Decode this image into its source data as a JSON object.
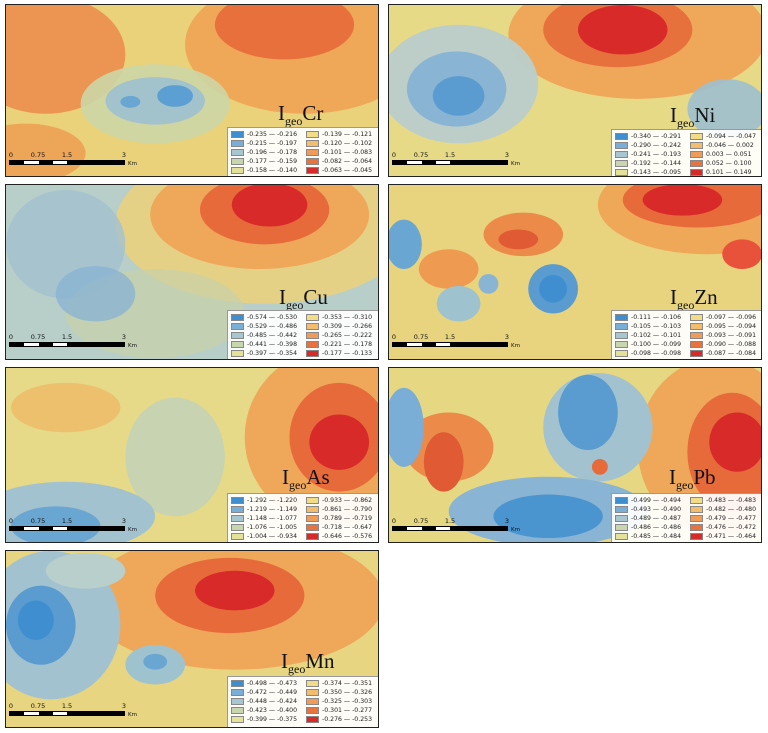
{
  "colors": {
    "blue": "#3f8fd0",
    "light_blue": "#8fb9d6",
    "pale_blue": "#b9cfcc",
    "yellow": "#ecdc86",
    "orange": "#f2a558",
    "deep_orange": "#e66a3a",
    "red": "#d92a2a"
  },
  "scalebar": {
    "ticks": [
      "0",
      "0.75",
      "1.5",
      "3"
    ],
    "unit": "Km"
  },
  "panels": [
    {
      "id": "cr",
      "title_prefix": "I",
      "title_sub": "geo",
      "title_element": "Cr",
      "legend_left": [
        "-0.235 — -0.216",
        "-0.215 — -0.197",
        "-0.196 — -0.178",
        "-0.177 — -0.159",
        "-0.158 — -0.140"
      ],
      "legend_right": [
        "-0.139 — -0.121",
        "-0.120 — -0.102",
        "-0.101 — -0.083",
        "-0.082 — -0.064",
        "-0.063 — -0.045"
      ]
    },
    {
      "id": "ni",
      "title_prefix": "I",
      "title_sub": "geo",
      "title_element": "Ni",
      "legend_left": [
        "-0.340 — -0.291",
        "-0.290 — -0.242",
        "-0.241 — -0.193",
        "-0.192 — -0.144",
        "-0.143 — -0.095"
      ],
      "legend_right": [
        "-0.094 — -0.047",
        "-0.046 — 0.002",
        "0.003 — 0.051",
        "0.052 — 0.100",
        "0.101 — 0.149"
      ]
    },
    {
      "id": "cu",
      "title_prefix": "I",
      "title_sub": "geo",
      "title_element": "Cu",
      "legend_left": [
        "-0.574 — -0.530",
        "-0.529 — -0.486",
        "-0.485 — -0.442",
        "-0.441 — -0.398",
        "-0.397 — -0.354"
      ],
      "legend_right": [
        "-0.353 — -0.310",
        "-0.309 — -0.266",
        "-0.265 — -0.222",
        "-0.221 — -0.178",
        "-0.177 — -0.133"
      ]
    },
    {
      "id": "zn",
      "title_prefix": "I",
      "title_sub": "geo",
      "title_element": "Zn",
      "legend_left": [
        "-0.111 — -0.106",
        "-0.105 — -0.103",
        "-0.102 — -0.101",
        "-0.100 — -0.099",
        "-0.098 — -0.098"
      ],
      "legend_right": [
        "-0.097 — -0.096",
        "-0.095 — -0.094",
        "-0.093 — -0.091",
        "-0.090 — -0.088",
        "-0.087 — -0.084"
      ]
    },
    {
      "id": "as",
      "title_prefix": "I",
      "title_sub": "geo",
      "title_element": "As",
      "legend_left": [
        "-1.292 — -1.220",
        "-1.219 — -1.149",
        "-1.148 — -1.077",
        "-1.076 — -1.005",
        "-1.004 — -0.934"
      ],
      "legend_right": [
        "-0.933 — -0.862",
        "-0.861 — -0.790",
        "-0.789 — -0.719",
        "-0.718 — -0.647",
        "-0.646 — -0.576"
      ]
    },
    {
      "id": "pb",
      "title_prefix": "I",
      "title_sub": "geo",
      "title_element": "Pb",
      "legend_left": [
        "-0.499 — -0.494",
        "-0.493 — -0.490",
        "-0.489 — -0.487",
        "-0.486 — -0.486",
        "-0.485 — -0.484"
      ],
      "legend_right": [
        "-0.483 — -0.483",
        "-0.482 — -0.480",
        "-0.479 — -0.477",
        "-0.476 — -0.472",
        "-0.471 — -0.464"
      ]
    },
    {
      "id": "mn",
      "title_prefix": "I",
      "title_sub": "geo",
      "title_element": "Mn",
      "legend_left": [
        "-0.498 — -0.473",
        "-0.472 — -0.449",
        "-0.448 — -0.424",
        "-0.423 — -0.400",
        "-0.399 — -0.375"
      ],
      "legend_right": [
        "-0.374 — -0.351",
        "-0.350 — -0.326",
        "-0.325 — -0.303",
        "-0.301 — -0.277",
        "-0.276 — -0.253"
      ]
    }
  ]
}
